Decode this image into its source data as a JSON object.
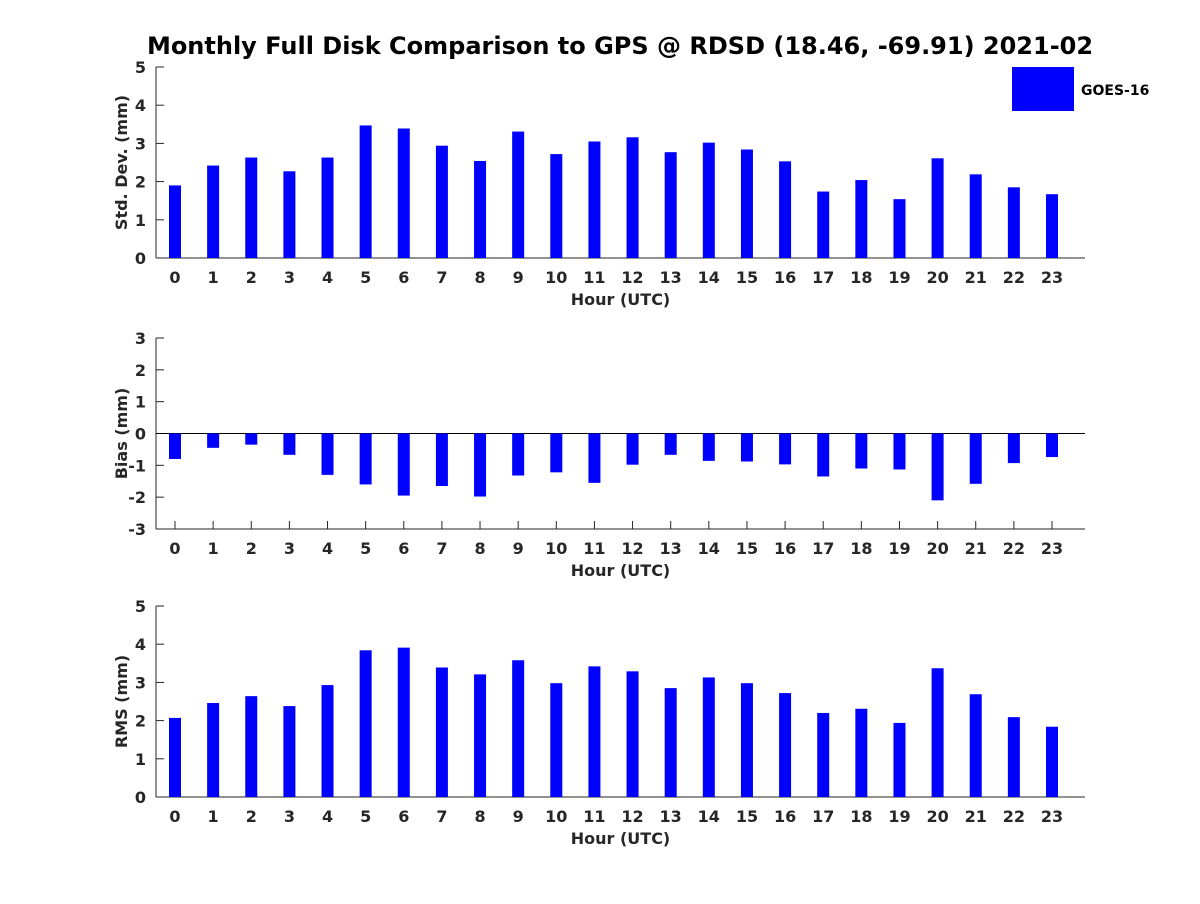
{
  "title": "Monthly Full Disk Comparison to GPS @ RDSD (18.46, -69.91) 2021-02",
  "legend": {
    "label": "GOES-16",
    "position": "top-right"
  },
  "colors": {
    "bar": "#0000ff",
    "axis": "#262626"
  },
  "chart_data": [
    {
      "type": "bar",
      "ylabel": "Std. Dev. (mm)",
      "xlabel": "Hour (UTC)",
      "ylim": [
        0,
        5
      ],
      "yticks": [
        0,
        1,
        2,
        3,
        4,
        5
      ],
      "categories": [
        "0",
        "1",
        "2",
        "3",
        "4",
        "5",
        "6",
        "7",
        "8",
        "9",
        "10",
        "11",
        "12",
        "13",
        "14",
        "15",
        "16",
        "17",
        "18",
        "19",
        "20",
        "21",
        "22",
        "23"
      ],
      "series": [
        {
          "name": "GOES-16",
          "values": [
            1.9,
            2.42,
            2.63,
            2.27,
            2.63,
            3.47,
            3.39,
            2.94,
            2.54,
            3.31,
            2.72,
            3.05,
            3.16,
            2.77,
            3.02,
            2.84,
            2.53,
            1.74,
            2.04,
            1.54,
            2.61,
            2.19,
            1.85,
            1.67
          ]
        }
      ]
    },
    {
      "type": "bar",
      "ylabel": "Bias (mm)",
      "xlabel": "Hour (UTC)",
      "ylim": [
        -3,
        3
      ],
      "yticks": [
        -3,
        -2,
        -1,
        0,
        1,
        2,
        3
      ],
      "categories": [
        "0",
        "1",
        "2",
        "3",
        "4",
        "5",
        "6",
        "7",
        "8",
        "9",
        "10",
        "11",
        "12",
        "13",
        "14",
        "15",
        "16",
        "17",
        "18",
        "19",
        "20",
        "21",
        "22",
        "23"
      ],
      "series": [
        {
          "name": "GOES-16",
          "values": [
            -0.8,
            -0.45,
            -0.35,
            -0.67,
            -1.3,
            -1.6,
            -1.95,
            -1.65,
            -1.98,
            -1.32,
            -1.22,
            -1.55,
            -0.98,
            -0.67,
            -0.86,
            -0.88,
            -0.97,
            -1.35,
            -1.1,
            -1.13,
            -2.1,
            -1.58,
            -0.93,
            -0.74
          ]
        }
      ]
    },
    {
      "type": "bar",
      "ylabel": "RMS (mm)",
      "xlabel": "Hour (UTC)",
      "ylim": [
        0,
        5
      ],
      "yticks": [
        0,
        1,
        2,
        3,
        4,
        5
      ],
      "categories": [
        "0",
        "1",
        "2",
        "3",
        "4",
        "5",
        "6",
        "7",
        "8",
        "9",
        "10",
        "11",
        "12",
        "13",
        "14",
        "15",
        "16",
        "17",
        "18",
        "19",
        "20",
        "21",
        "22",
        "23"
      ],
      "series": [
        {
          "name": "GOES-16",
          "values": [
            2.07,
            2.46,
            2.64,
            2.38,
            2.93,
            3.84,
            3.91,
            3.39,
            3.21,
            3.58,
            2.98,
            3.42,
            3.29,
            2.85,
            3.13,
            2.98,
            2.72,
            2.2,
            2.31,
            1.94,
            3.37,
            2.69,
            2.09,
            1.84
          ]
        }
      ]
    }
  ]
}
